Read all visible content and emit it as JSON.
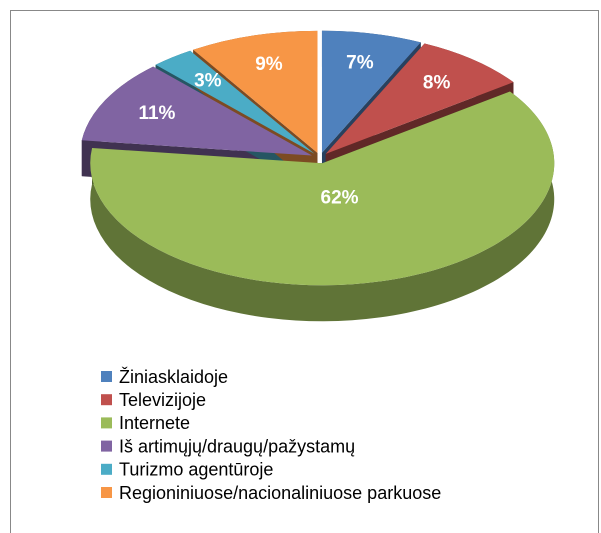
{
  "chart_data": {
    "type": "pie",
    "categories": [
      "Žiniasklaidoje",
      "Televizijoje",
      "Internete",
      "Iš artimųjų/draugų/pažystamų",
      "Turizmo agentūroje",
      "Regioniniuose/nacionaliniuose parkuose"
    ],
    "values": [
      7,
      8,
      62,
      11,
      3,
      9
    ],
    "value_labels": [
      "7%",
      "8%",
      "62%",
      "11%",
      "3%",
      "9%"
    ],
    "colors": [
      "#4f81bd",
      "#c0504d",
      "#9bbb59",
      "#8064a2",
      "#4bacc6",
      "#f79646"
    ]
  }
}
